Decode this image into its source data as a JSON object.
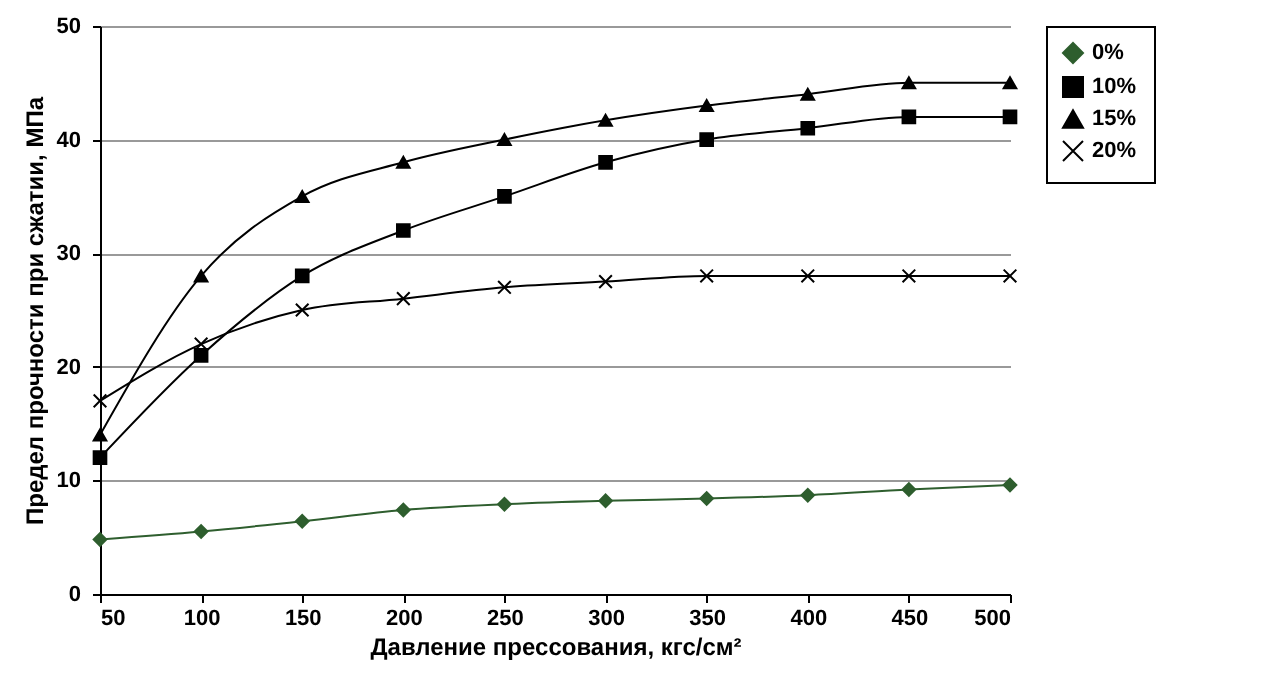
{
  "chart_data": {
    "type": "line",
    "xlabel": "Давление прессования, кгс/см²",
    "ylabel": "Предел прочности при сжатии, МПа",
    "x": [
      50,
      100,
      150,
      200,
      250,
      300,
      350,
      400,
      450,
      500
    ],
    "xlim": [
      50,
      500
    ],
    "xticks": [
      50,
      100,
      150,
      200,
      250,
      300,
      350,
      400,
      450,
      500
    ],
    "ylim": [
      0,
      50
    ],
    "yticks": [
      0,
      10,
      20,
      30,
      40,
      50
    ],
    "grid": "y",
    "legend": "right",
    "series": [
      {
        "name": "0%",
        "color": "#2e5e2e",
        "marker": "diamond",
        "values": [
          4.8,
          5.5,
          6.4,
          7.4,
          7.9,
          8.2,
          8.4,
          8.7,
          9.2,
          9.6
        ]
      },
      {
        "name": "10%",
        "color": "#000000",
        "marker": "square",
        "values": [
          12,
          21,
          28,
          32,
          35,
          38,
          40,
          41,
          42,
          42
        ]
      },
      {
        "name": "15%",
        "color": "#000000",
        "marker": "triangle",
        "values": [
          14,
          28,
          35,
          38,
          40,
          41.7,
          43,
          44,
          45,
          45
        ]
      },
      {
        "name": "20%",
        "color": "#000000",
        "marker": "cross",
        "values": [
          17,
          22,
          25,
          26,
          27,
          27.5,
          28,
          28,
          28,
          28
        ]
      }
    ]
  }
}
